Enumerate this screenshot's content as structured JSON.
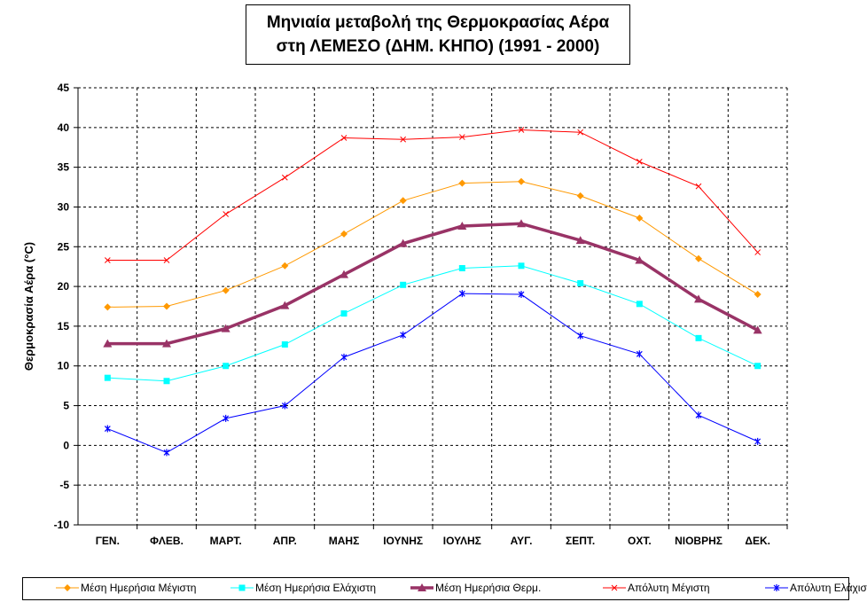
{
  "chart_data": {
    "type": "line",
    "title": [
      "Μηνιαία μεταβολή της Θερμοκρασίας Αέρα",
      "στη ΛΕΜΕΣΟ (ΔΗΜ. ΚΗΠΟ)  (1991 - 2000)"
    ],
    "xlabel": "",
    "ylabel": "Θερμοκρασία Αέρα (°C)",
    "ylim": [
      -10,
      45
    ],
    "yticks": [
      -10,
      -5,
      0,
      5,
      10,
      15,
      20,
      25,
      30,
      35,
      40,
      45
    ],
    "grid": true,
    "legend_position": "bottom",
    "categories": [
      "ΓΕΝ.",
      "ΦΛΕΒ.",
      "ΜΑΡΤ.",
      "ΑΠΡ.",
      "ΜΑΗΣ",
      "ΙΟΥΝΗΣ",
      "ΙΟΥΛΗΣ",
      "ΑΥΓ.",
      "ΣΕΠΤ.",
      "ΟΧΤ.",
      "ΝΙΟΒΡΗΣ",
      "ΔΕΚ."
    ],
    "series": [
      {
        "name": "Μέση Ημερήσια Μέγιστη",
        "color": "#FF9900",
        "marker": "diamond",
        "width": 1,
        "values": [
          17.4,
          17.5,
          19.5,
          22.6,
          26.6,
          30.8,
          33.0,
          33.2,
          31.4,
          28.6,
          23.5,
          19.0
        ]
      },
      {
        "name": "Μέση Ημερήσια Ελάχιστη",
        "color": "#00FFFF",
        "marker": "square",
        "width": 1,
        "values": [
          8.5,
          8.1,
          10.0,
          12.7,
          16.6,
          20.2,
          22.3,
          22.6,
          20.4,
          17.8,
          13.5,
          10.0
        ]
      },
      {
        "name": "Μέση Ημερήσια Θερμ.",
        "color": "#993366",
        "marker": "triangle",
        "width": 3.5,
        "values": [
          12.8,
          12.8,
          14.7,
          17.6,
          21.5,
          25.4,
          27.6,
          27.9,
          25.8,
          23.3,
          18.4,
          14.5
        ]
      },
      {
        "name": "Απόλυτη Μέγιστη",
        "color": "#FF0000",
        "marker": "x",
        "width": 1,
        "values": [
          23.3,
          23.3,
          29.1,
          33.7,
          38.7,
          38.5,
          38.8,
          39.7,
          39.4,
          35.7,
          32.6,
          24.3
        ]
      },
      {
        "name": "Απόλυτη Ελάχιστη",
        "color": "#0000FF",
        "marker": "star",
        "width": 1,
        "values": [
          2.1,
          -0.9,
          3.4,
          5.0,
          11.1,
          13.9,
          19.1,
          19.0,
          13.8,
          11.5,
          3.8,
          0.5
        ]
      }
    ]
  }
}
